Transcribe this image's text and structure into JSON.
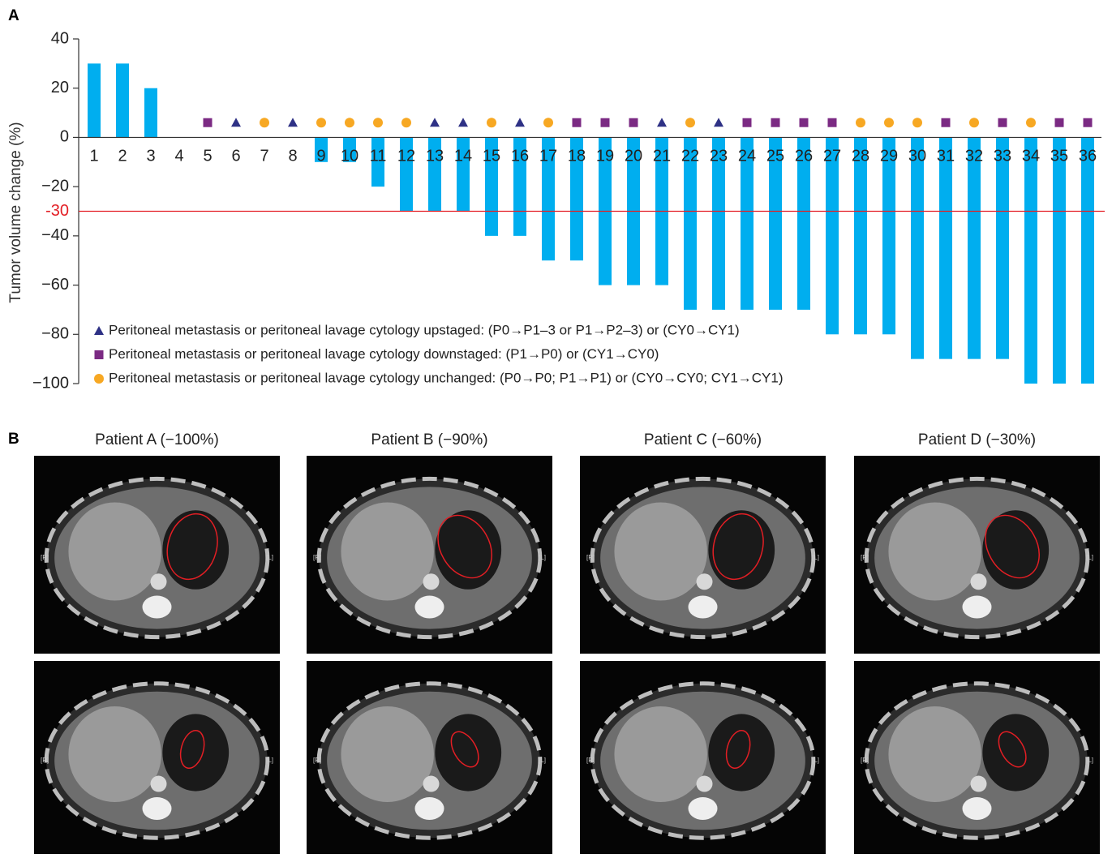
{
  "chart_data": {
    "type": "bar",
    "panel_label": "A",
    "ylabel": "Tumor volume change (%)",
    "categories": [
      "1",
      "2",
      "3",
      "4",
      "5",
      "6",
      "7",
      "8",
      "9",
      "10",
      "11",
      "12",
      "13",
      "14",
      "15",
      "16",
      "17",
      "18",
      "19",
      "20",
      "21",
      "22",
      "23",
      "24",
      "25",
      "26",
      "27",
      "28",
      "29",
      "30",
      "31",
      "32",
      "33",
      "34",
      "35",
      "36"
    ],
    "values": [
      30,
      30,
      20,
      0,
      0,
      0,
      0,
      0,
      -10,
      -10,
      -20,
      -30,
      -30,
      -30,
      -40,
      -40,
      -50,
      -50,
      -60,
      -60,
      -60,
      -70,
      -70,
      -70,
      -70,
      -70,
      -80,
      -80,
      -80,
      -90,
      -90,
      -90,
      -90,
      -100,
      -100,
      -100
    ],
    "color": "#00aeef",
    "ylim": [
      -100,
      40
    ],
    "yticks": [
      {
        "value": -100,
        "label": "−100"
      },
      {
        "value": -80,
        "label": "−80"
      },
      {
        "value": -60,
        "label": "−60"
      },
      {
        "value": -40,
        "label": "−40"
      },
      {
        "value": -20,
        "label": "−20"
      },
      0,
      20,
      40
    ],
    "reference_line": {
      "value": -30,
      "label": "-30",
      "color": "#e31e24"
    },
    "markers": [
      {
        "name": "Peritoneal metastasis or peritoneal lavage cytology upstaged: (P0→P1–3 or P1→P2–3) or (CY0→CY1)",
        "shape": "triangle",
        "color": "#2e3185",
        "values": [
          null,
          null,
          null,
          null,
          null,
          6,
          null,
          6,
          null,
          null,
          null,
          null,
          6,
          6,
          null,
          6,
          null,
          null,
          null,
          null,
          6,
          null,
          6,
          null,
          null,
          null,
          null,
          null,
          null,
          null,
          null,
          null,
          null,
          null,
          null,
          null
        ]
      },
      {
        "name": "Peritoneal metastasis or peritoneal lavage cytology downstaged: (P1→P0) or (CY1→CY0)",
        "shape": "square",
        "color": "#7b2a83",
        "values": [
          null,
          null,
          null,
          null,
          6,
          null,
          null,
          null,
          null,
          null,
          null,
          null,
          null,
          null,
          null,
          null,
          null,
          6,
          6,
          6,
          null,
          null,
          null,
          6,
          6,
          6,
          6,
          null,
          null,
          null,
          6,
          null,
          6,
          null,
          6,
          6
        ]
      },
      {
        "name": "Peritoneal metastasis or peritoneal lavage cytology unchanged: (P0→P0; P1→P1) or (CY0→CY0; CY1→CY1)",
        "shape": "circle",
        "color": "#f7a823",
        "values": [
          null,
          null,
          null,
          null,
          null,
          null,
          6,
          null,
          6,
          6,
          6,
          6,
          null,
          null,
          6,
          null,
          6,
          null,
          null,
          null,
          null,
          6,
          null,
          null,
          null,
          null,
          null,
          6,
          6,
          6,
          null,
          6,
          null,
          6,
          null,
          null
        ]
      }
    ]
  },
  "panel_b": {
    "label": "B",
    "titles": [
      "Patient A (−100%)",
      "Patient B (−90%)",
      "Patient C (−60%)",
      "Patient D (−30%)"
    ],
    "side_labels": [
      "[R]",
      "[L]"
    ]
  }
}
